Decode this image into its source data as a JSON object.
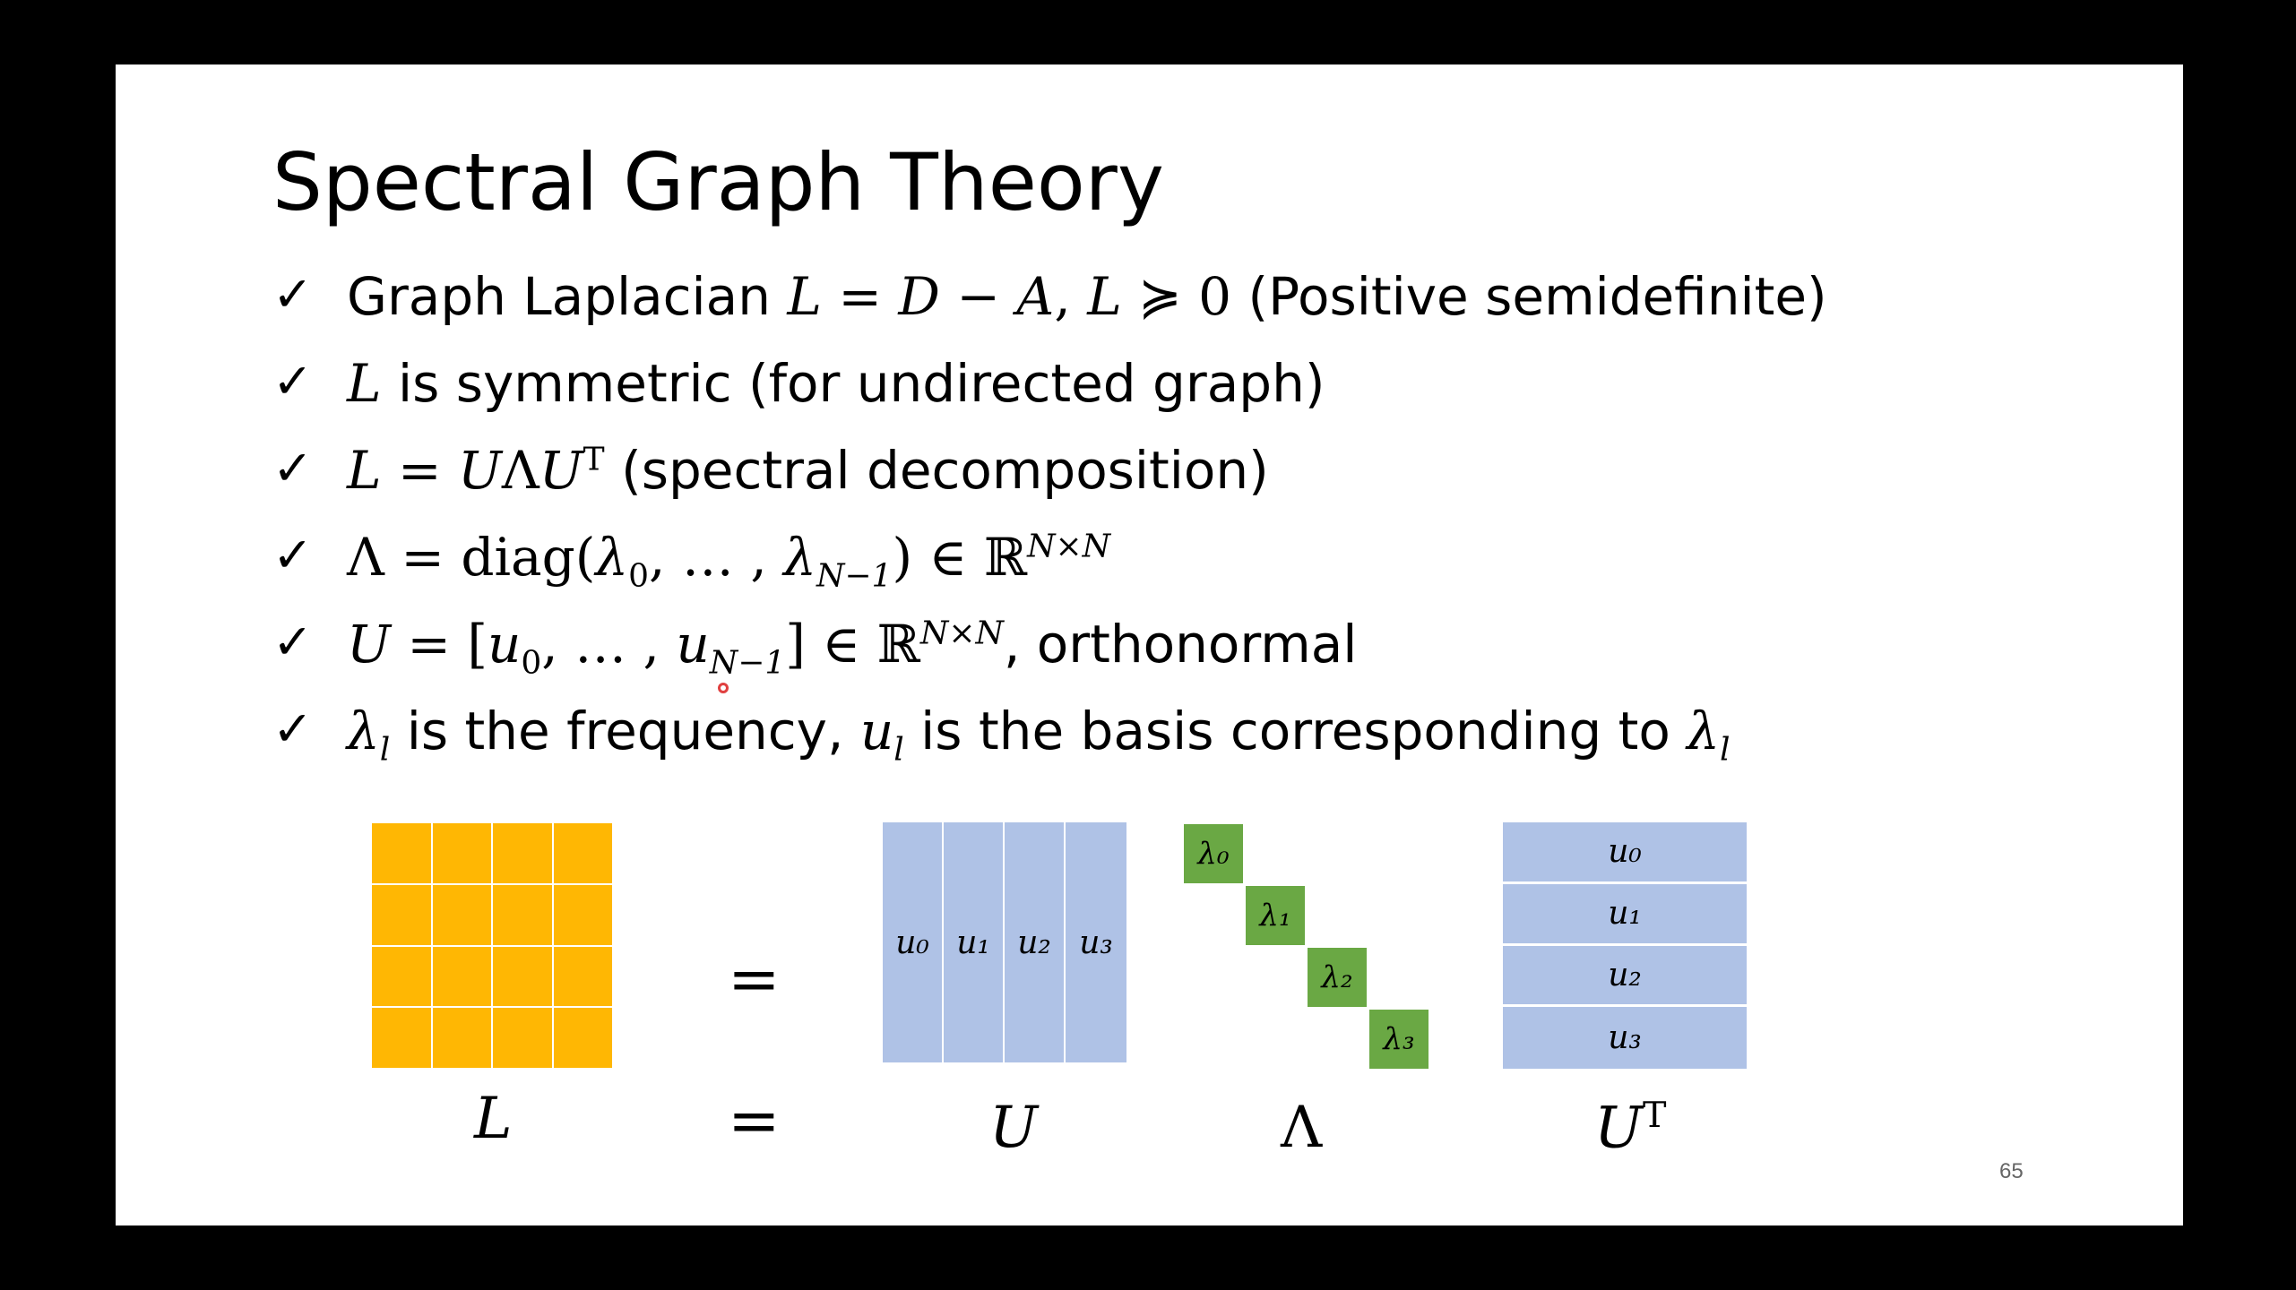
{
  "slide": {
    "title": "Spectral Graph Theory",
    "check_symbol": "✓",
    "bullets": {
      "b1_text": "Graph Laplacian ",
      "b1_math1": "L",
      "b1_eq": " = ",
      "b1_math2": "D",
      "b1_minus": " − ",
      "b1_math3": "A",
      "b1_comma": ",  ",
      "b1_math4": "L",
      "b1_succ": " ≽ 0",
      "b1_text2": " (Positive semidefinite)",
      "b2_math": "L",
      "b2_text": " is symmetric (for undirected graph)",
      "b3_math1": "L",
      "b3_eq": " = ",
      "b3_math2": "U",
      "b3_lambda": "Λ",
      "b3_math3": "U",
      "b3_sup": "T",
      "b3_text": " (spectral decomposition)",
      "b4_lambda": "Λ",
      "b4_eq": " = diag(",
      "b4_l": "λ",
      "b4_sub0": "0",
      "b4_dots": ", … , ",
      "b4_l2": "λ",
      "b4_subN": "N−1",
      "b4_close": ") ∈ ℝ",
      "b4_sup": "N×N",
      "b5_math": "U",
      "b5_eq": " = [",
      "b5_u": "u",
      "b5_sub0": "0",
      "b5_dots": ", … , ",
      "b5_u2": "u",
      "b5_subN": "N−1",
      "b5_close": "] ∈ ℝ",
      "b5_sup": "N×N",
      "b5_text": ", orthonormal",
      "b6_l": "λ",
      "b6_sub": "l",
      "b6_text1": " is the frequency, ",
      "b6_u": "u",
      "b6_sub2": "l",
      "b6_text2": " is the basis corresponding to ",
      "b6_l2": "λ",
      "b6_sub3": "l"
    },
    "diagram": {
      "u_columns": [
        "u₀",
        "u₁",
        "u₂",
        "u₃"
      ],
      "lambdas": [
        "λ₀",
        "λ₁",
        "λ₂",
        "λ₃"
      ],
      "ut_rows": [
        "u₀",
        "u₁",
        "u₂",
        "u₃"
      ],
      "eq_symbol": "=",
      "label_L": "L",
      "label_U": "U",
      "label_Lambda": "Λ",
      "label_UT": "U",
      "label_UT_sup": "T"
    },
    "page_number": "65",
    "colors": {
      "L_matrix": "#FFB703",
      "U_matrix": "#AFC2E6",
      "Lambda_diag": "#6AA844"
    }
  }
}
